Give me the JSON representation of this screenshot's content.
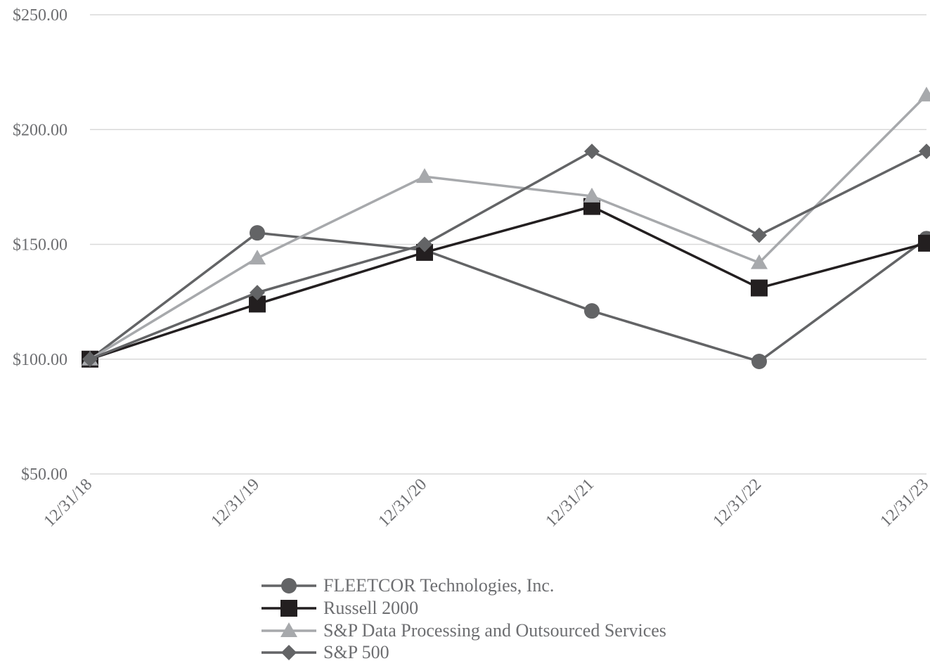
{
  "chart_data": {
    "type": "line",
    "x": [
      "12/31/18",
      "12/31/19",
      "12/31/20",
      "12/31/21",
      "12/31/22",
      "12/31/23"
    ],
    "y_tick_labels": [
      "$50.00",
      "$100.00",
      "$150.00",
      "$200.00",
      "$250.00"
    ],
    "y_ticks": [
      50,
      100,
      150,
      200,
      250
    ],
    "ylim": [
      50,
      250
    ],
    "grid": true,
    "legend_position": "bottom-center",
    "series": [
      {
        "name": "FLEETCOR Technologies, Inc.",
        "values": [
          100.0,
          155.0,
          147.5,
          121.0,
          99.0,
          152.5
        ],
        "color": "#636466",
        "marker": "circle"
      },
      {
        "name": "Russell 2000",
        "values": [
          100.0,
          124.0,
          146.5,
          166.5,
          131.0,
          150.5
        ],
        "color": "#231f20",
        "marker": "square"
      },
      {
        "name": "S&P Data Processing and Outsourced Services",
        "values": [
          100.0,
          144.0,
          179.5,
          171.0,
          142.0,
          215.0
        ],
        "color": "#a7a9ac",
        "marker": "triangle"
      },
      {
        "name": "S&P 500",
        "values": [
          100.0,
          129.0,
          150.0,
          190.5,
          154.0,
          190.5
        ],
        "color": "#636466",
        "marker": "diamond"
      }
    ]
  }
}
